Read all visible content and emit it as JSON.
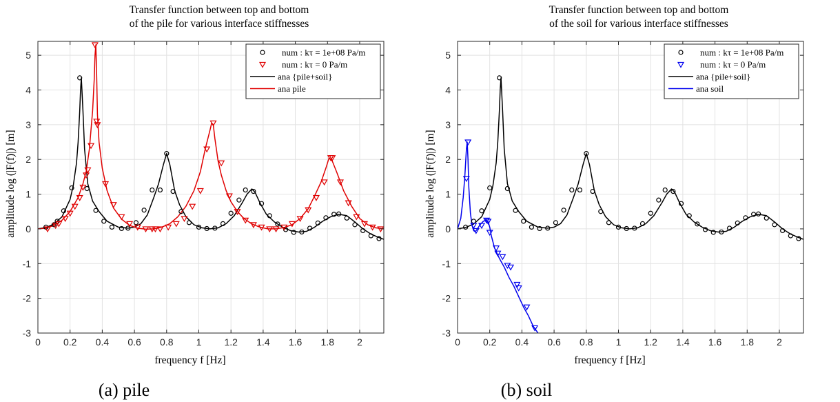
{
  "chart_data": [
    {
      "type": "line",
      "panel": "a",
      "caption": "(a) pile",
      "title_lines": [
        "Transfer function between top and bottom",
        "of the pile for various interface stiffnesses"
      ],
      "xlabel": "frequency f [Hz]",
      "ylabel": "amplitude log (|F(f)|) [m]",
      "xlim": [
        0,
        2.15
      ],
      "ylim": [
        -3,
        5.4
      ],
      "xticks": [
        0,
        0.2,
        0.4,
        0.6,
        0.8,
        1,
        1.2,
        1.4,
        1.6,
        1.8,
        2
      ],
      "xtick_labels": [
        "0",
        "0.2",
        "0.4",
        "0.6",
        "0.8",
        "1",
        "1.2",
        "1.4",
        "1.6",
        "1.8",
        "2"
      ],
      "yticks": [
        -3,
        -2,
        -1,
        0,
        1,
        2,
        3,
        4,
        5
      ],
      "ytick_labels": [
        "-3",
        "-2",
        "-1",
        "0",
        "1",
        "2",
        "3",
        "4",
        "5"
      ],
      "grid": true,
      "legend_position": "top-right",
      "series": [
        {
          "name": "ana {pile+soil}",
          "kind": "line",
          "color": "#000000",
          "x": [
            0,
            0.05,
            0.1,
            0.15,
            0.2,
            0.22,
            0.24,
            0.25,
            0.26,
            0.265,
            0.27,
            0.28,
            0.29,
            0.31,
            0.34,
            0.38,
            0.43,
            0.5,
            0.56,
            0.6,
            0.64,
            0.68,
            0.72,
            0.75,
            0.78,
            0.8,
            0.82,
            0.85,
            0.88,
            0.92,
            0.97,
            1.02,
            1.07,
            1.12,
            1.17,
            1.22,
            1.27,
            1.3,
            1.33,
            1.35,
            1.38,
            1.42,
            1.47,
            1.52,
            1.57,
            1.62,
            1.67,
            1.72,
            1.77,
            1.82,
            1.87,
            1.92,
            1.97,
            2.02,
            2.07,
            2.12,
            2.15
          ],
          "y": [
            0,
            0.04,
            0.14,
            0.35,
            0.85,
            1.25,
            1.9,
            2.5,
            3.4,
            4.0,
            4.35,
            3.4,
            2.3,
            1.3,
            0.8,
            0.5,
            0.22,
            0.05,
            0.02,
            0.05,
            0.15,
            0.4,
            0.9,
            1.3,
            1.85,
            2.17,
            1.85,
            1.1,
            0.7,
            0.35,
            0.12,
            0.03,
            0.0,
            0.03,
            0.15,
            0.38,
            0.75,
            1.0,
            1.15,
            1.05,
            0.75,
            0.42,
            0.2,
            0.05,
            -0.05,
            -0.09,
            -0.07,
            0.05,
            0.22,
            0.35,
            0.42,
            0.38,
            0.2,
            0.0,
            -0.15,
            -0.25,
            -0.3
          ]
        },
        {
          "name": "num : kτ = 1e+08 Pa/m",
          "kind": "markers",
          "marker": "circle",
          "color": "#000000",
          "x": [
            0.05,
            0.1,
            0.12,
            0.16,
            0.21,
            0.26,
            0.305,
            0.36,
            0.41,
            0.46,
            0.52,
            0.56,
            0.61,
            0.66,
            0.71,
            0.76,
            0.8,
            0.84,
            0.89,
            0.94,
            1.0,
            1.05,
            1.1,
            1.15,
            1.2,
            1.25,
            1.29,
            1.34,
            1.39,
            1.44,
            1.49,
            1.54,
            1.59,
            1.64,
            1.69,
            1.74,
            1.79,
            1.84,
            1.87,
            1.92,
            1.97,
            2.02,
            2.07,
            2.12
          ],
          "y": [
            0.05,
            0.12,
            0.22,
            0.52,
            1.18,
            4.35,
            1.16,
            0.53,
            0.22,
            0.05,
            0.01,
            0.02,
            0.18,
            0.54,
            1.12,
            1.12,
            2.17,
            1.08,
            0.5,
            0.18,
            0.05,
            0.01,
            0.02,
            0.15,
            0.45,
            0.83,
            1.12,
            1.08,
            0.73,
            0.38,
            0.14,
            -0.02,
            -0.1,
            -0.09,
            0.02,
            0.17,
            0.32,
            0.42,
            0.43,
            0.31,
            0.12,
            -0.05,
            -0.2,
            -0.28
          ]
        },
        {
          "name": "ana pile",
          "kind": "line",
          "color": "#e00000",
          "x": [
            0,
            0.05,
            0.1,
            0.15,
            0.2,
            0.25,
            0.28,
            0.3,
            0.32,
            0.34,
            0.35,
            0.355,
            0.36,
            0.365,
            0.37,
            0.38,
            0.4,
            0.43,
            0.47,
            0.52,
            0.57,
            0.62,
            0.67,
            0.72,
            0.77,
            0.82,
            0.87,
            0.92,
            0.97,
            1.01,
            1.04,
            1.07,
            1.08,
            1.09,
            1.1,
            1.12,
            1.14,
            1.17,
            1.2,
            1.24,
            1.28,
            1.33,
            1.38,
            1.43,
            1.48,
            1.53,
            1.58,
            1.63,
            1.68,
            1.72,
            1.76,
            1.79,
            1.81,
            1.83,
            1.86,
            1.9,
            1.95,
            2.0,
            2.05,
            2.1,
            2.15
          ],
          "y": [
            0,
            0.02,
            0.1,
            0.25,
            0.5,
            0.9,
            1.3,
            1.65,
            2.3,
            3.4,
            4.3,
            5.0,
            5.3,
            4.5,
            3.3,
            2.5,
            1.75,
            1.1,
            0.6,
            0.28,
            0.1,
            0.02,
            -0.01,
            0.0,
            0.05,
            0.15,
            0.35,
            0.65,
            1.1,
            1.65,
            2.3,
            2.85,
            3.05,
            3.0,
            2.6,
            1.95,
            1.55,
            1.1,
            0.78,
            0.5,
            0.3,
            0.14,
            0.05,
            0.0,
            0.0,
            0.04,
            0.12,
            0.3,
            0.58,
            0.95,
            1.35,
            1.75,
            2.05,
            1.95,
            1.6,
            1.1,
            0.65,
            0.3,
            0.12,
            0.03,
            0.0
          ]
        },
        {
          "name": "num : kτ = 0 Pa/m",
          "kind": "markers",
          "marker": "triangle-down",
          "color": "#e00000",
          "x": [
            0.06,
            0.11,
            0.13,
            0.17,
            0.2,
            0.23,
            0.26,
            0.28,
            0.3,
            0.31,
            0.33,
            0.355,
            0.365,
            0.37,
            0.42,
            0.47,
            0.52,
            0.57,
            0.62,
            0.67,
            0.71,
            0.73,
            0.76,
            0.81,
            0.86,
            0.91,
            0.96,
            1.01,
            1.05,
            1.09,
            1.14,
            1.19,
            1.24,
            1.29,
            1.34,
            1.39,
            1.44,
            1.48,
            1.53,
            1.58,
            1.63,
            1.68,
            1.73,
            1.78,
            1.82,
            1.83,
            1.88,
            1.93,
            1.98,
            2.03,
            2.08,
            2.13
          ],
          "y": [
            0.0,
            0.1,
            0.15,
            0.3,
            0.45,
            0.65,
            0.9,
            1.2,
            1.55,
            1.7,
            2.4,
            5.3,
            3.1,
            3.0,
            1.3,
            0.7,
            0.35,
            0.15,
            0.05,
            0.0,
            0.0,
            0.0,
            0.0,
            0.05,
            0.15,
            0.3,
            0.65,
            1.1,
            2.3,
            3.05,
            1.9,
            0.95,
            0.5,
            0.25,
            0.12,
            0.05,
            0.0,
            0.0,
            0.05,
            0.15,
            0.3,
            0.55,
            0.9,
            1.35,
            2.05,
            2.05,
            1.35,
            0.75,
            0.35,
            0.15,
            0.05,
            0.0
          ]
        }
      ],
      "legend": [
        {
          "label": "num : kτ = 1e+08 Pa/m",
          "marker": "circle",
          "color": "#000000"
        },
        {
          "label": "num : kτ = 0 Pa/m",
          "marker": "triangle-down",
          "color": "#e00000"
        },
        {
          "label": "ana {pile+soil}",
          "marker": "line",
          "color": "#000000"
        },
        {
          "label": "ana pile",
          "marker": "line",
          "color": "#e00000"
        }
      ]
    },
    {
      "type": "line",
      "panel": "b",
      "caption": "(b) soil",
      "title_lines": [
        "Transfer function between top and bottom",
        "of the soil for various interface stiffnesses"
      ],
      "xlabel": "frequency f [Hz]",
      "ylabel": "amplitude log (|F(f)|) [m]",
      "xlim": [
        0,
        2.15
      ],
      "ylim": [
        -3,
        5.4
      ],
      "xticks": [
        0,
        0.2,
        0.4,
        0.6,
        0.8,
        1,
        1.2,
        1.4,
        1.6,
        1.8,
        2
      ],
      "xtick_labels": [
        "0",
        "0.2",
        "0.4",
        "0.6",
        "0.8",
        "1",
        "1.2",
        "1.4",
        "1.6",
        "1.8",
        "2"
      ],
      "yticks": [
        -3,
        -2,
        -1,
        0,
        1,
        2,
        3,
        4,
        5
      ],
      "ytick_labels": [
        "-3",
        "-2",
        "-1",
        "0",
        "1",
        "2",
        "3",
        "4",
        "5"
      ],
      "grid": true,
      "legend_position": "top-right",
      "series": [
        {
          "name": "ana {pile+soil}",
          "kind": "line",
          "color": "#000000",
          "x": [
            0,
            0.05,
            0.1,
            0.15,
            0.2,
            0.22,
            0.24,
            0.25,
            0.26,
            0.265,
            0.27,
            0.28,
            0.29,
            0.31,
            0.34,
            0.38,
            0.43,
            0.5,
            0.56,
            0.6,
            0.64,
            0.68,
            0.72,
            0.75,
            0.78,
            0.8,
            0.82,
            0.85,
            0.88,
            0.92,
            0.97,
            1.02,
            1.07,
            1.12,
            1.17,
            1.22,
            1.27,
            1.3,
            1.33,
            1.35,
            1.38,
            1.42,
            1.47,
            1.52,
            1.57,
            1.62,
            1.67,
            1.72,
            1.77,
            1.82,
            1.87,
            1.92,
            1.97,
            2.02,
            2.07,
            2.12,
            2.15
          ],
          "y": [
            0,
            0.04,
            0.14,
            0.35,
            0.85,
            1.25,
            1.9,
            2.5,
            3.4,
            4.0,
            4.35,
            3.4,
            2.3,
            1.3,
            0.8,
            0.5,
            0.22,
            0.05,
            0.02,
            0.05,
            0.15,
            0.4,
            0.9,
            1.3,
            1.85,
            2.17,
            1.85,
            1.1,
            0.7,
            0.35,
            0.12,
            0.03,
            0.0,
            0.03,
            0.15,
            0.38,
            0.75,
            1.0,
            1.15,
            1.05,
            0.75,
            0.42,
            0.2,
            0.05,
            -0.05,
            -0.09,
            -0.07,
            0.05,
            0.22,
            0.35,
            0.42,
            0.38,
            0.2,
            0.0,
            -0.15,
            -0.25,
            -0.3
          ]
        },
        {
          "name": "num : kτ = 1e+08 Pa/m",
          "kind": "markers",
          "marker": "circle",
          "color": "#000000",
          "x": [
            0.05,
            0.1,
            0.15,
            0.2,
            0.26,
            0.31,
            0.36,
            0.41,
            0.46,
            0.51,
            0.56,
            0.61,
            0.66,
            0.71,
            0.76,
            0.8,
            0.84,
            0.89,
            0.94,
            1.0,
            1.05,
            1.1,
            1.15,
            1.2,
            1.25,
            1.29,
            1.34,
            1.39,
            1.44,
            1.49,
            1.54,
            1.59,
            1.64,
            1.69,
            1.74,
            1.79,
            1.84,
            1.87,
            1.92,
            1.97,
            2.02,
            2.07,
            2.12
          ],
          "y": [
            0.05,
            0.22,
            0.52,
            1.18,
            4.35,
            1.16,
            0.53,
            0.22,
            0.05,
            0.01,
            0.02,
            0.18,
            0.54,
            1.12,
            1.12,
            2.17,
            1.08,
            0.5,
            0.18,
            0.05,
            0.01,
            0.02,
            0.15,
            0.45,
            0.83,
            1.12,
            1.08,
            0.73,
            0.38,
            0.14,
            -0.02,
            -0.1,
            -0.09,
            0.02,
            0.17,
            0.32,
            0.42,
            0.43,
            0.31,
            0.12,
            -0.05,
            -0.2,
            -0.28
          ]
        },
        {
          "name": "ana soil",
          "kind": "line",
          "color": "#0000ee",
          "x": [
            0,
            0.02,
            0.035,
            0.045,
            0.055,
            0.06,
            0.065,
            0.07,
            0.08,
            0.09,
            0.1,
            0.11,
            0.12,
            0.14,
            0.16,
            0.18,
            0.19,
            0.2,
            0.21,
            0.23,
            0.26,
            0.29,
            0.32,
            0.35,
            0.38,
            0.41,
            0.44,
            0.47,
            0.5
          ],
          "y": [
            0,
            0.3,
            0.9,
            1.5,
            2.3,
            2.5,
            2.0,
            1.2,
            0.45,
            0.1,
            -0.05,
            -0.08,
            -0.02,
            0.12,
            0.22,
            0.25,
            0.2,
            0.05,
            -0.2,
            -0.55,
            -0.85,
            -1.1,
            -1.4,
            -1.65,
            -1.95,
            -2.25,
            -2.5,
            -2.8,
            -3.0
          ]
        },
        {
          "name": "num : kτ = 0 Pa/m",
          "kind": "markers",
          "marker": "triangle-down",
          "color": "#0000ee",
          "x": [
            0.055,
            0.065,
            0.1,
            0.115,
            0.15,
            0.18,
            0.19,
            0.2,
            0.24,
            0.25,
            0.28,
            0.31,
            0.33,
            0.37,
            0.38,
            0.43,
            0.48
          ],
          "y": [
            1.45,
            2.5,
            0.1,
            -0.05,
            0.1,
            0.25,
            0.22,
            -0.1,
            -0.55,
            -0.7,
            -0.8,
            -1.05,
            -1.1,
            -1.6,
            -1.7,
            -2.25,
            -2.85
          ]
        }
      ],
      "legend": [
        {
          "label": "num : kτ = 1e+08 Pa/m",
          "marker": "circle",
          "color": "#000000"
        },
        {
          "label": "num : kτ = 0 Pa/m",
          "marker": "triangle-down",
          "color": "#0000ee"
        },
        {
          "label": "ana {pile+soil}",
          "marker": "line",
          "color": "#000000"
        },
        {
          "label": "ana soil",
          "marker": "line",
          "color": "#0000ee"
        }
      ]
    }
  ]
}
